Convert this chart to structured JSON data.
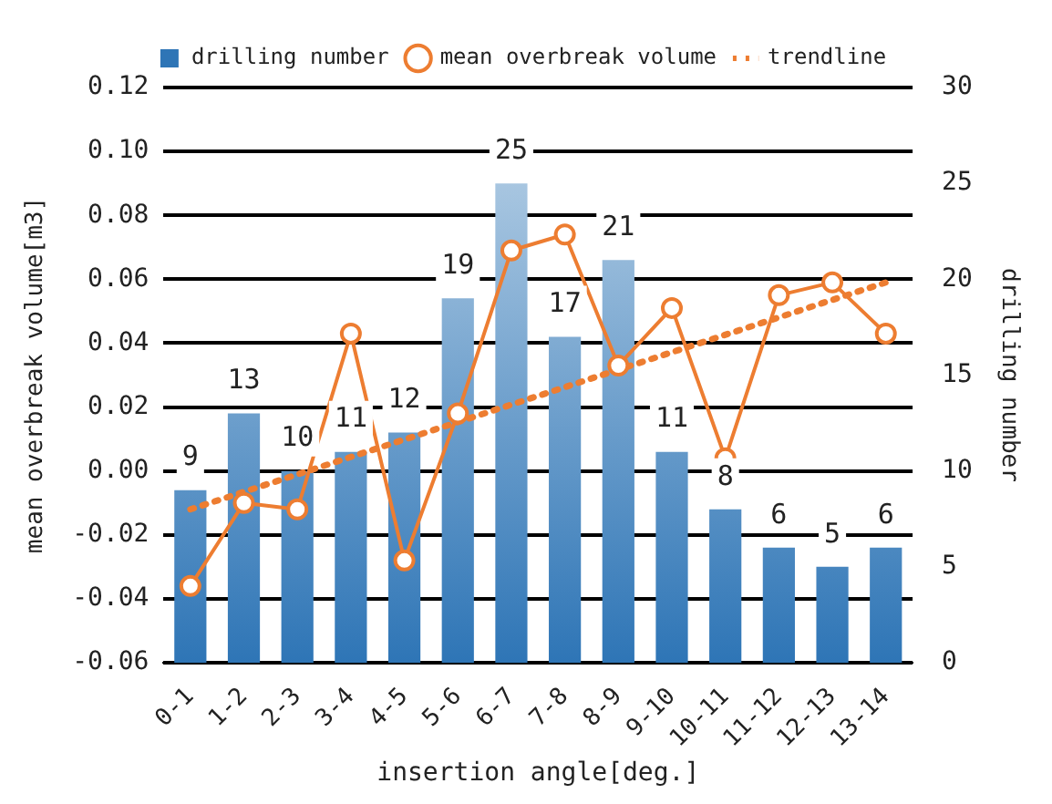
{
  "chart_data": {
    "type": "bar",
    "xlabel": "insertion angle[deg.]",
    "ylabel": "mean overbreak volume[m3]",
    "y2label": "drilling number",
    "categories": [
      "0-1",
      "1-2",
      "2-3",
      "3-4",
      "4-5",
      "5-6",
      "6-7",
      "7-8",
      "8-9",
      "9-10",
      "10-11",
      "11-12",
      "12-13",
      "13-14"
    ],
    "series": [
      {
        "name": "drilling number",
        "axis": "y2",
        "color": "#2e75b6",
        "values": [
          9,
          13,
          10,
          11,
          12,
          19,
          25,
          17,
          21,
          11,
          8,
          6,
          5,
          6
        ],
        "value_labels": [
          "9",
          "13",
          "10",
          "11",
          "12",
          "19",
          "25",
          "17",
          "21",
          "11",
          "8",
          "6",
          "5",
          "6"
        ]
      },
      {
        "name": "mean overbreak volume",
        "type": "line",
        "marker": "circle",
        "line_style": "solid",
        "color": "#ed7d31",
        "values": [
          -0.036,
          -0.01,
          -0.012,
          0.043,
          -0.028,
          0.018,
          0.069,
          0.074,
          0.033,
          0.051,
          0.004,
          0.055,
          0.059,
          0.043
        ]
      },
      {
        "name": "trendline",
        "type": "line",
        "marker": "none",
        "line_style": "dotted",
        "color": "#ed7d31",
        "x": [
          "0-1",
          "13-14"
        ],
        "values": [
          -0.012,
          0.059
        ]
      }
    ],
    "ylim": [
      -0.06,
      0.12
    ],
    "yticks": [
      {
        "value": -0.06,
        "label": "-0.06"
      },
      {
        "value": -0.04,
        "label": "-0.04"
      },
      {
        "value": -0.02,
        "label": "-0.02"
      },
      {
        "value": 0,
        "label": "0.00"
      },
      {
        "value": 0.02,
        "label": "0.02"
      },
      {
        "value": 0.04,
        "label": "0.04"
      },
      {
        "value": 0.06,
        "label": "0.06"
      },
      {
        "value": 0.08,
        "label": "0.08"
      },
      {
        "value": 0.1,
        "label": "0.10"
      },
      {
        "value": 0.12,
        "label": "0.12"
      }
    ],
    "y2lim": [
      0,
      30
    ],
    "y2ticks": [
      0,
      5,
      10,
      15,
      20,
      25,
      30
    ],
    "grid": "y",
    "legend": "top"
  }
}
